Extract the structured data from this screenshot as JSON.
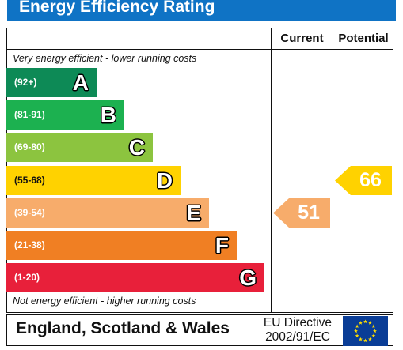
{
  "title": "Energy Efficiency Rating",
  "headers": {
    "current": "Current",
    "potential": "Potential"
  },
  "notes": {
    "top": "Very energy efficient - lower running costs",
    "bottom": "Not energy efficient - higher running costs"
  },
  "chart_data": {
    "type": "bar",
    "categories": [
      "A",
      "B",
      "C",
      "D",
      "E",
      "F",
      "G"
    ],
    "ranges": [
      "(92+)",
      "(81-91)",
      "(69-80)",
      "(55-68)",
      "(39-54)",
      "(21-38)",
      "(1-20)"
    ],
    "colors": [
      "#0d8a56",
      "#1cb150",
      "#8cc43f",
      "#ffd200",
      "#f7ac6b",
      "#f07f23",
      "#e8203a"
    ],
    "current": {
      "value": 51,
      "band": "E",
      "color": "#f7ac6b"
    },
    "potential": {
      "value": 66,
      "band": "D",
      "color": "#ffd200"
    }
  },
  "footer": {
    "region": "England, Scotland & Wales",
    "directive_line1": "EU Directive",
    "directive_line2": "2002/91/EC"
  }
}
